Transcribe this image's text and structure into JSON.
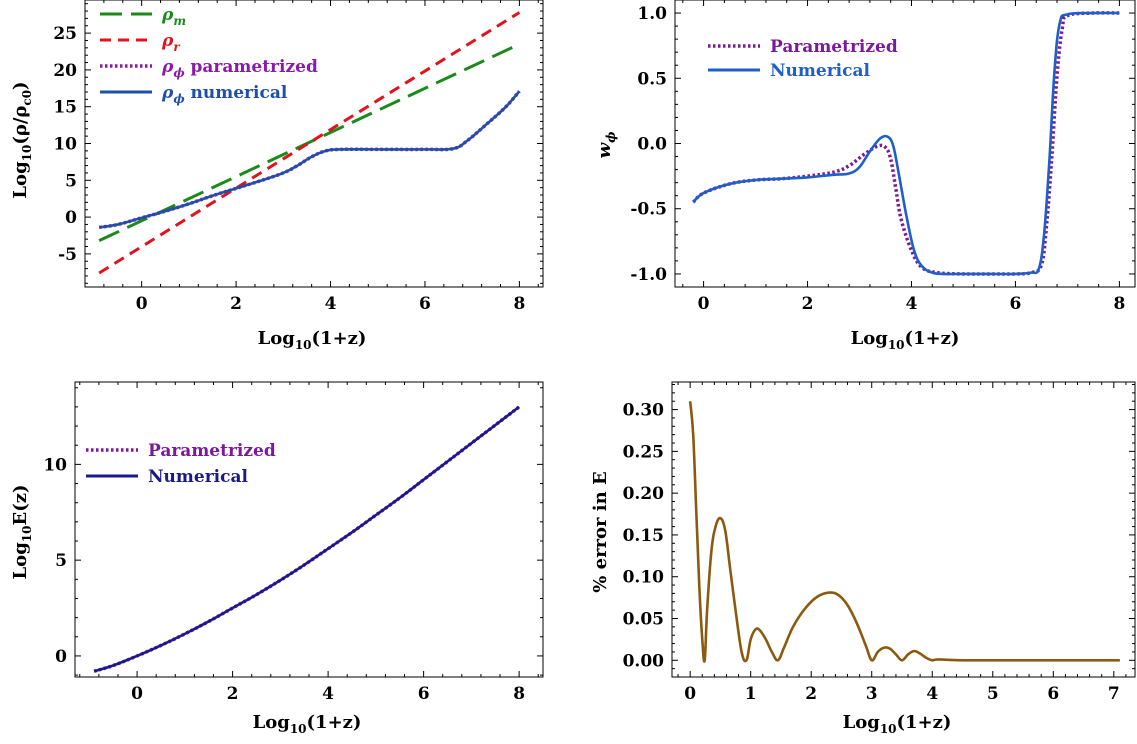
{
  "chart_data": [
    {
      "id": "p1",
      "type": "line",
      "xlabel": {
        "base": "Log",
        "sub": "10",
        "rest": "(1+z)"
      },
      "ylabel": {
        "base": "Log",
        "sub": "10",
        "rest": "(ρ/ρ",
        "sub2": "c0",
        "end": ")"
      },
      "xlim": [
        -1.2,
        8.5
      ],
      "ylim": [
        -9.5,
        29.5
      ],
      "xticks": [
        0,
        2,
        4,
        6,
        8
      ],
      "yticks": [
        -5,
        0,
        5,
        10,
        15,
        20,
        25
      ],
      "legend_position": "top-left",
      "series": [
        {
          "name": "ρ_m",
          "label": {
            "sym": "ρ",
            "sub": "m",
            "rest": ""
          },
          "color": "#1a8a1a",
          "style": "longdash",
          "x": [
            -0.9,
            8.0
          ],
          "y": [
            -3.2,
            23.5
          ]
        },
        {
          "name": "ρ_r",
          "label": {
            "sym": "ρ",
            "sub": "r",
            "rest": ""
          },
          "color": "#e0141e",
          "style": "dash",
          "x": [
            -0.9,
            8.0
          ],
          "y": [
            -7.6,
            27.8
          ]
        },
        {
          "name": "ρ_φ parametrized",
          "label": {
            "sym": "ρ",
            "sub": "ϕ",
            "rest": " parametrized"
          },
          "color": "#8a1aa8",
          "style": "dot",
          "x": [
            -0.9,
            -0.5,
            0,
            0.5,
            1,
            1.5,
            2,
            2.5,
            3,
            3.3,
            3.6,
            3.9,
            4.2,
            5,
            6,
            6.6,
            6.9,
            7.3,
            7.7,
            8.0
          ],
          "y": [
            -1.4,
            -1.0,
            -0.1,
            0.8,
            1.8,
            2.9,
            3.9,
            4.9,
            6.0,
            7.0,
            8.2,
            9.0,
            9.2,
            9.2,
            9.2,
            9.3,
            10.4,
            12.6,
            14.9,
            17.1
          ]
        },
        {
          "name": "ρ_φ numerical",
          "label": {
            "sym": "ρ",
            "sub": "ϕ",
            "rest": " numerical"
          },
          "color": "#1f4fa8",
          "style": "solid",
          "x": [
            -0.9,
            -0.5,
            0,
            0.5,
            1,
            1.5,
            2,
            2.5,
            3,
            3.3,
            3.6,
            3.9,
            4.2,
            5,
            6,
            6.6,
            6.9,
            7.3,
            7.7,
            8.0
          ],
          "y": [
            -1.4,
            -1.0,
            -0.1,
            0.8,
            1.8,
            2.9,
            3.9,
            4.9,
            6.0,
            7.0,
            8.2,
            9.0,
            9.2,
            9.2,
            9.2,
            9.3,
            10.4,
            12.6,
            14.9,
            17.1
          ]
        }
      ]
    },
    {
      "id": "p2",
      "type": "line",
      "xlabel": {
        "base": "Log",
        "sub": "10",
        "rest": "(1+z)"
      },
      "ylabel": {
        "base": "w",
        "sub": "ϕ",
        "rest": ""
      },
      "xlim": [
        -0.55,
        8.3
      ],
      "ylim": [
        -1.1,
        1.1
      ],
      "xticks": [
        0,
        2,
        4,
        6,
        8
      ],
      "yticks": [
        -1.0,
        -0.5,
        0.0,
        0.5,
        1.0
      ],
      "ytick_labels": [
        "-1.0",
        "-0.5",
        "0.0",
        "0.5",
        "1.0"
      ],
      "legend_position": "top-left",
      "series": [
        {
          "name": "Parametrized",
          "label": {
            "sym": "",
            "sub": "",
            "rest": "Parametrized"
          },
          "color": "#7a1a9a",
          "style": "dot",
          "x": [
            -0.2,
            0,
            0.5,
            1,
            1.5,
            2,
            2.5,
            2.8,
            3.1,
            3.35,
            3.5,
            3.6,
            3.7,
            3.8,
            4.0,
            4.2,
            4.5,
            5,
            5.5,
            6,
            6.3,
            6.5,
            6.6,
            6.7,
            6.8,
            6.9,
            7.0,
            7.5,
            8.0
          ],
          "y": [
            -0.45,
            -0.38,
            -0.31,
            -0.28,
            -0.27,
            -0.25,
            -0.22,
            -0.17,
            -0.08,
            -0.02,
            -0.03,
            -0.12,
            -0.35,
            -0.58,
            -0.82,
            -0.95,
            -0.99,
            -1.0,
            -1.0,
            -1.0,
            -0.99,
            -0.93,
            -0.62,
            -0.1,
            0.52,
            0.88,
            0.98,
            1.0,
            1.0
          ]
        },
        {
          "name": "Numerical",
          "label": {
            "sym": "",
            "sub": "",
            "rest": "Numerical"
          },
          "color": "#1f5fc8",
          "style": "solid",
          "x": [
            -0.2,
            0,
            0.5,
            1,
            1.5,
            2,
            2.5,
            2.8,
            3.0,
            3.2,
            3.4,
            3.55,
            3.65,
            3.75,
            3.9,
            4.05,
            4.2,
            4.4,
            4.6,
            5,
            5.5,
            6,
            6.3,
            6.45,
            6.55,
            6.65,
            6.75,
            6.85,
            7.0,
            7.5,
            8.0
          ],
          "y": [
            -0.45,
            -0.38,
            -0.31,
            -0.28,
            -0.27,
            -0.26,
            -0.24,
            -0.23,
            -0.18,
            -0.06,
            0.04,
            0.05,
            -0.02,
            -0.22,
            -0.55,
            -0.82,
            -0.94,
            -0.99,
            -1.0,
            -1.0,
            -1.0,
            -1.0,
            -0.99,
            -0.96,
            -0.7,
            -0.15,
            0.55,
            0.92,
            0.99,
            1.0,
            1.0
          ]
        }
      ]
    },
    {
      "id": "p3",
      "type": "line",
      "xlabel": {
        "base": "Log",
        "sub": "10",
        "rest": "(1+z)"
      },
      "ylabel": {
        "base": "Log",
        "sub": "10",
        "rest": "E(z)"
      },
      "xlim": [
        -1.3,
        8.5
      ],
      "ylim": [
        -1.1,
        14.3
      ],
      "xticks": [
        0,
        2,
        4,
        6,
        8
      ],
      "yticks": [
        0,
        5,
        10
      ],
      "legend_position": "top-left",
      "series": [
        {
          "name": "Parametrized",
          "label": {
            "sym": "",
            "sub": "",
            "rest": "Parametrized"
          },
          "color": "#7a1a9a",
          "style": "dot",
          "x": [
            -0.9,
            -0.5,
            0,
            0.5,
            1,
            1.5,
            2,
            2.5,
            3,
            3.5,
            4,
            4.5,
            5,
            5.5,
            6,
            6.5,
            7,
            7.5,
            8.0
          ],
          "y": [
            -0.8,
            -0.5,
            0,
            0.55,
            1.15,
            1.8,
            2.5,
            3.2,
            3.95,
            4.75,
            5.6,
            6.45,
            7.35,
            8.25,
            9.2,
            10.15,
            11.1,
            12.05,
            13.0
          ]
        },
        {
          "name": "Numerical",
          "label": {
            "sym": "",
            "sub": "",
            "rest": "Numerical"
          },
          "color": "#1a1a8a",
          "style": "solid",
          "x": [
            -0.9,
            -0.5,
            0,
            0.5,
            1,
            1.5,
            2,
            2.5,
            3,
            3.5,
            4,
            4.5,
            5,
            5.5,
            6,
            6.5,
            7,
            7.5,
            8.0
          ],
          "y": [
            -0.8,
            -0.5,
            0,
            0.55,
            1.15,
            1.8,
            2.5,
            3.2,
            3.95,
            4.75,
            5.6,
            6.45,
            7.35,
            8.25,
            9.2,
            10.15,
            11.1,
            12.05,
            13.0
          ]
        }
      ]
    },
    {
      "id": "p4",
      "type": "line",
      "xlabel": {
        "base": "Log",
        "sub": "10",
        "rest": "(1+z)"
      },
      "ylabel": {
        "base": "% error in E",
        "sub": "",
        "rest": ""
      },
      "xlim": [
        -0.3,
        7.35
      ],
      "ylim": [
        -0.02,
        0.333
      ],
      "xticks": [
        0,
        1,
        2,
        3,
        4,
        5,
        6,
        7
      ],
      "yticks": [
        0.0,
        0.05,
        0.1,
        0.15,
        0.2,
        0.25,
        0.3
      ],
      "ytick_labels": [
        "0.00",
        "0.05",
        "0.10",
        "0.15",
        "0.20",
        "0.25",
        "0.30"
      ],
      "series": [
        {
          "name": "% error",
          "label": null,
          "color": "#8b5a10",
          "style": "solid",
          "x": [
            0.0,
            0.05,
            0.1,
            0.15,
            0.2,
            0.24,
            0.28,
            0.35,
            0.42,
            0.5,
            0.58,
            0.66,
            0.75,
            0.85,
            0.93,
            1.0,
            1.08,
            1.15,
            1.25,
            1.35,
            1.45,
            1.55,
            1.7,
            1.9,
            2.1,
            2.3,
            2.45,
            2.6,
            2.75,
            2.9,
            3.0,
            3.1,
            3.2,
            3.3,
            3.4,
            3.5,
            3.6,
            3.7,
            3.8,
            3.9,
            4.0,
            4.1,
            4.5,
            5.5,
            6.5,
            7.1
          ],
          "y": [
            0.31,
            0.27,
            0.18,
            0.09,
            0.025,
            0.0,
            0.06,
            0.13,
            0.16,
            0.17,
            0.155,
            0.11,
            0.06,
            0.01,
            0.0,
            0.025,
            0.037,
            0.036,
            0.025,
            0.01,
            0.0,
            0.015,
            0.04,
            0.062,
            0.076,
            0.081,
            0.078,
            0.066,
            0.045,
            0.018,
            0.0,
            0.01,
            0.015,
            0.014,
            0.007,
            0.0,
            0.007,
            0.011,
            0.008,
            0.003,
            0.0,
            0.001,
            0.0,
            0.0,
            0.0,
            0.0
          ]
        }
      ]
    }
  ]
}
